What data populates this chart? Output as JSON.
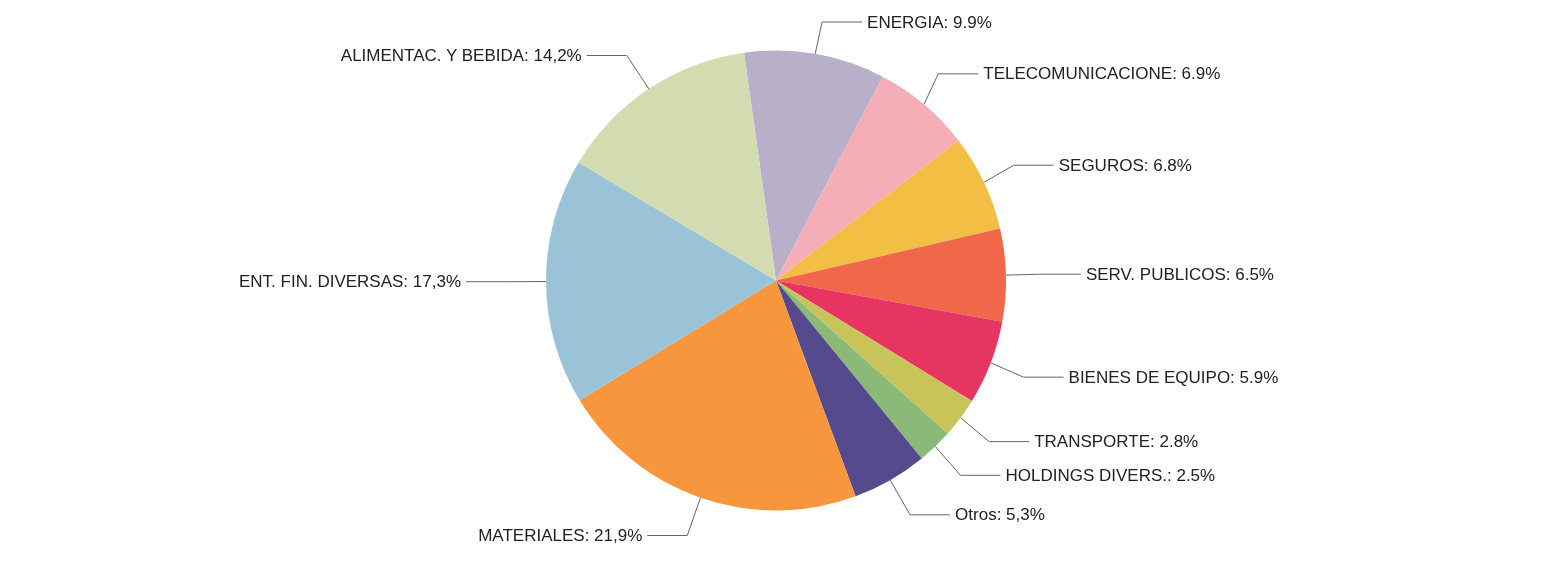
{
  "chart_data": {
    "type": "pie",
    "categories": [
      "ENERGIA",
      "TELECOMUNICACIONE",
      "SEGUROS",
      "SERV. PUBLICOS",
      "BIENES DE EQUIPO",
      "TRANSPORTE",
      "HOLDINGS DIVERS.",
      "Otros",
      "MATERIALES",
      "ENT. FIN. DIVERSAS",
      "ALIMENTAC. Y BEBIDA"
    ],
    "values": [
      9.9,
      6.9,
      6.8,
      6.5,
      5.9,
      2.8,
      2.5,
      5.3,
      21.9,
      17.3,
      14.2
    ],
    "value_labels": [
      "9.9%",
      "6.9%",
      "6.8%",
      "6.5%",
      "5.9%",
      "2.8%",
      "2.5%",
      "5,3%",
      "21,9%",
      "17,3%",
      "14,2%"
    ],
    "colors": [
      "#b8b0c9",
      "#f5aeb8",
      "#f2be44",
      "#f0674a",
      "#e73561",
      "#c9c45a",
      "#8bb978",
      "#554a8e",
      "#f7963d",
      "#9ac3d8",
      "#d3dbb1"
    ],
    "legend": false
  }
}
